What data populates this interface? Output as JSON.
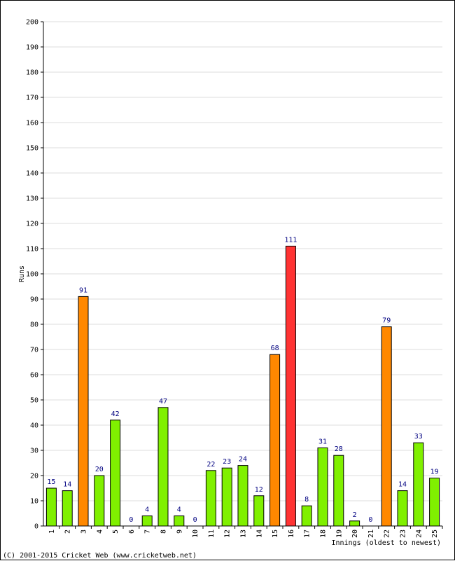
{
  "chart_data": {
    "type": "bar",
    "categories": [
      "1",
      "2",
      "3",
      "4",
      "5",
      "6",
      "7",
      "8",
      "9",
      "10",
      "11",
      "12",
      "13",
      "14",
      "15",
      "16",
      "17",
      "18",
      "19",
      "20",
      "21",
      "22",
      "23",
      "24",
      "25"
    ],
    "values": [
      15,
      14,
      91,
      20,
      42,
      0,
      4,
      47,
      4,
      0,
      22,
      23,
      24,
      12,
      68,
      111,
      8,
      31,
      28,
      2,
      0,
      79,
      14,
      33,
      19
    ],
    "ylabel": "Runs",
    "xlabel": "Innings (oldest to newest)",
    "ylim": [
      0,
      200
    ],
    "ytick_step": 10,
    "grid": true,
    "colors": {
      "below_50": "#80f000",
      "fifty_plus": "#ff8800",
      "hundred_plus": "#ff3333",
      "grid": "#dddddd",
      "data_label": "#000080"
    }
  },
  "footer": "(C) 2001-2015 Cricket Web (www.cricketweb.net)"
}
